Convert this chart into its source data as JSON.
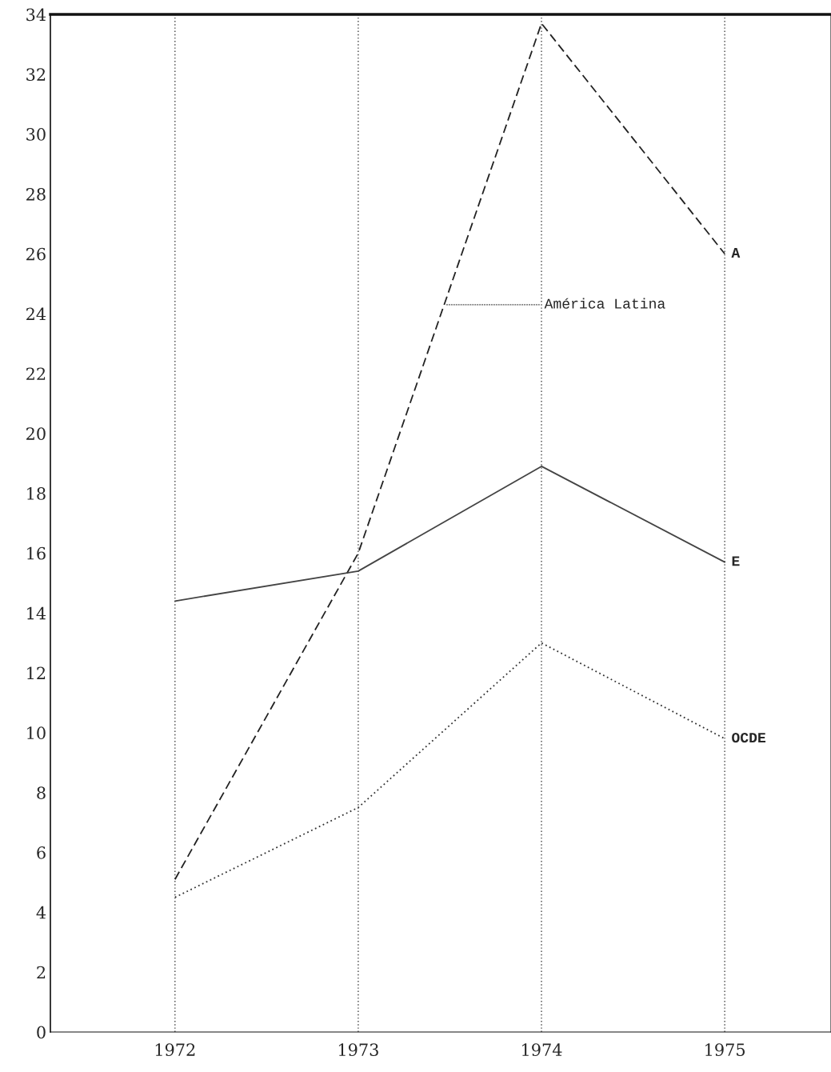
{
  "chart_data": {
    "type": "line",
    "x": [
      1972,
      1973,
      1974,
      1975
    ],
    "series": [
      {
        "name": "A",
        "color": "#222222",
        "line_style": "dashed",
        "values": [
          5.1,
          16.0,
          33.7,
          26.0
        ]
      },
      {
        "name": "E",
        "color": "#444444",
        "line_style": "solid",
        "values": [
          14.4,
          15.4,
          18.9,
          15.7
        ]
      },
      {
        "name": "OCDE",
        "color": "#333333",
        "line_style": "dotted",
        "values": [
          4.5,
          7.5,
          13.0,
          9.8
        ]
      }
    ],
    "xlim": [
      1971.32,
      1975.58
    ],
    "xticks": [
      1972,
      1973,
      1974,
      1975
    ],
    "ylim": [
      0,
      34
    ],
    "yticks": [
      0,
      2,
      4,
      6,
      8,
      10,
      12,
      14,
      16,
      18,
      20,
      22,
      24,
      26,
      28,
      30,
      32,
      34
    ],
    "grid": "x",
    "marker": "none",
    "legend": false,
    "annotations": [
      {
        "text": "América Latina",
        "x": 1973.47,
        "y": 24.3
      }
    ]
  }
}
